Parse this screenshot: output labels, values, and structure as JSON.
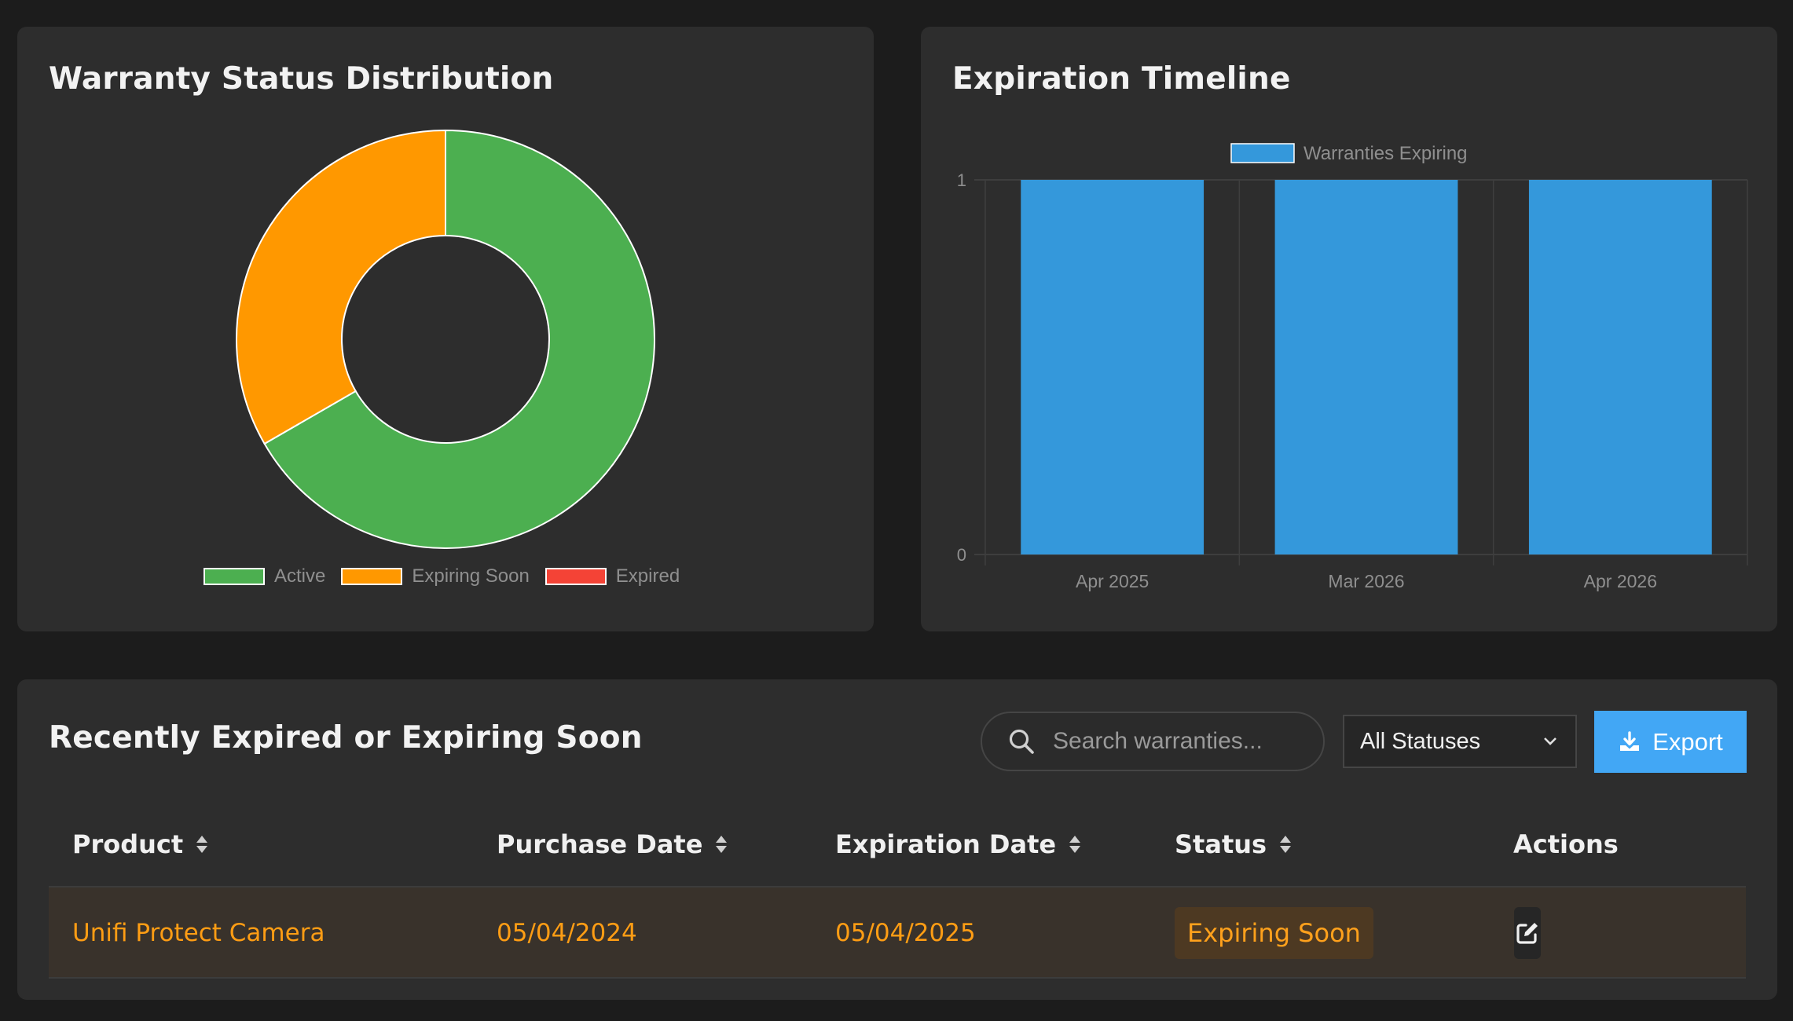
{
  "status_card": {
    "title": "Warranty Status Distribution"
  },
  "timeline_card": {
    "title": "Expiration Timeline"
  },
  "chart_data": [
    {
      "type": "pie",
      "title": "Warranty Status Distribution",
      "style": "donut",
      "categories": [
        "Active",
        "Expiring Soon",
        "Expired"
      ],
      "values": [
        2,
        1,
        0
      ],
      "colors": [
        "#4caf50",
        "#ff9800",
        "#f44336"
      ],
      "legend": "bottom"
    },
    {
      "type": "bar",
      "title": "Expiration Timeline",
      "categories": [
        "Apr 2025",
        "Mar 2026",
        "Apr 2026"
      ],
      "series": [
        {
          "name": "Warranties Expiring",
          "values": [
            1,
            1,
            1
          ],
          "color": "#3498db"
        }
      ],
      "ylim": [
        0,
        1
      ],
      "yticks": [
        "0",
        "1"
      ],
      "legend": "top",
      "grid": true
    }
  ],
  "table_card": {
    "title": "Recently Expired or Expiring Soon",
    "search_placeholder": "Search warranties...",
    "status_filter": "All Statuses",
    "export_label": "Export",
    "columns": [
      "Product",
      "Purchase Date",
      "Expiration Date",
      "Status",
      "Actions"
    ],
    "rows": [
      {
        "product": "Unifi Protect Camera",
        "purchase_date": "05/04/2024",
        "expiration_date": "05/04/2025",
        "status": "Expiring Soon"
      }
    ]
  },
  "icons": {
    "search": "search-icon",
    "dropdown": "chevron-down-icon",
    "export": "download-icon",
    "sort": "sort-icon",
    "edit": "edit-icon"
  }
}
